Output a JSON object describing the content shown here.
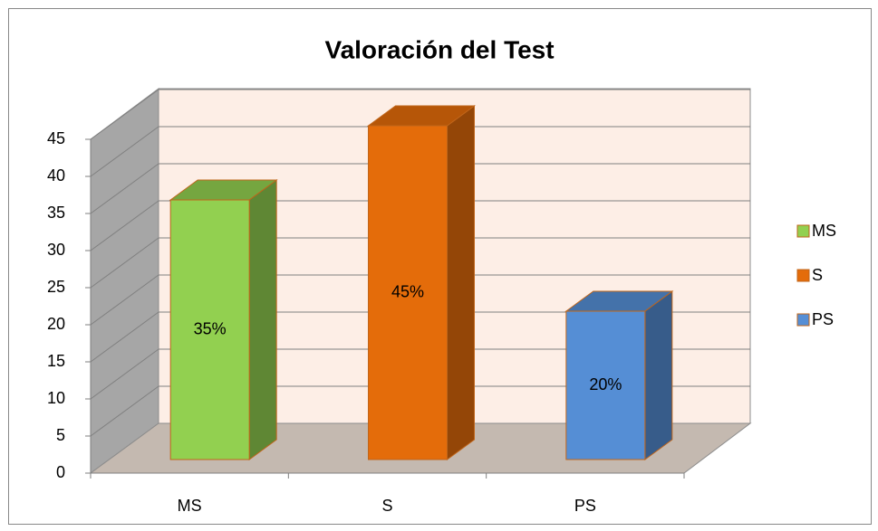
{
  "chart_data": {
    "type": "bar3d",
    "title": "Valoración del Test",
    "categories": [
      "MS",
      "S",
      "PS"
    ],
    "values": [
      35,
      45,
      20
    ],
    "value_labels": [
      "35%",
      "45%",
      "20%"
    ],
    "colors": [
      "#92d050",
      "#e46c0a",
      "#558ed5"
    ],
    "ylim": [
      0,
      45
    ],
    "yticks": [
      0,
      5,
      10,
      15,
      20,
      25,
      30,
      35,
      40,
      45
    ],
    "grid": true,
    "legend": "right"
  }
}
